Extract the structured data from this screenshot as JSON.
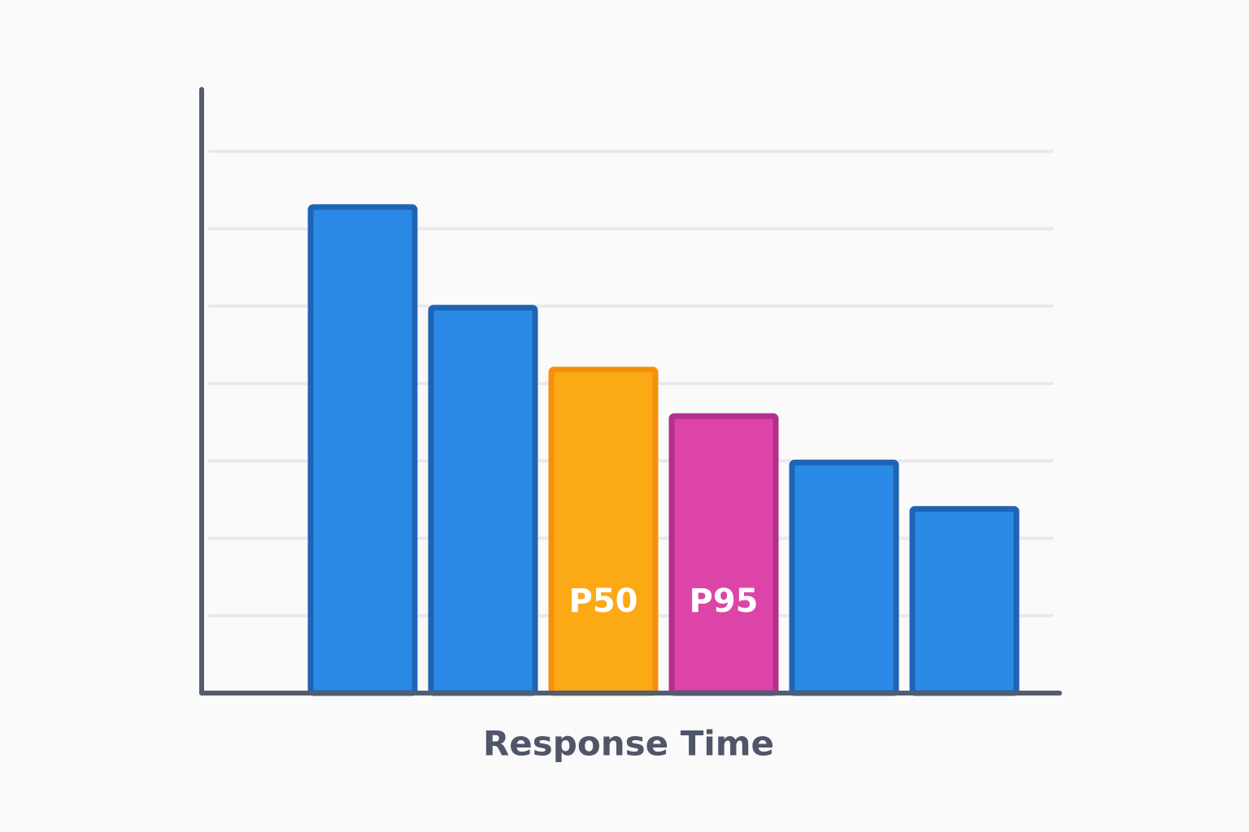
{
  "chart_data": {
    "type": "bar",
    "x_label": "Response Time",
    "categories": [
      null,
      null,
      "P50",
      "P95",
      null,
      null
    ],
    "values": [
      6.3,
      5.0,
      4.2,
      3.6,
      3.0,
      2.4
    ],
    "colors": [
      "#2a8ae6",
      "#2a8ae6",
      "#fca916",
      "#dc44a8",
      "#2a8ae6",
      "#2a8ae6"
    ],
    "edge_colors": [
      "#1f64b4",
      "#1f64b4",
      "#f5900c",
      "#b3308c",
      "#1f64b4",
      "#1f64b4"
    ],
    "ylim": [
      0,
      7.8
    ],
    "yticks": [
      1,
      2,
      3,
      4,
      5,
      6,
      7
    ],
    "grid": true
  }
}
